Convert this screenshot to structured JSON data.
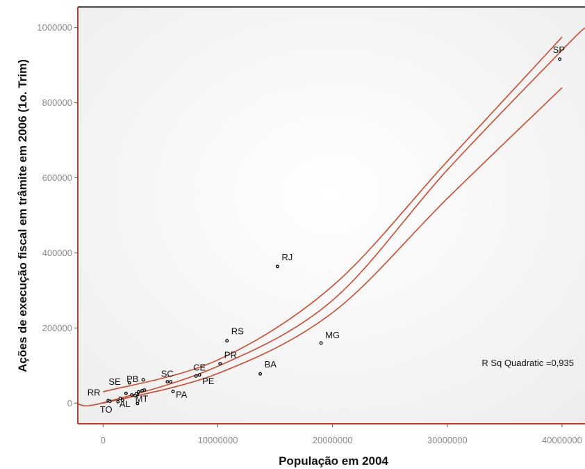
{
  "chart_data": {
    "type": "scatter",
    "title": "",
    "xlabel": "População em 2004",
    "ylabel": "Ações de execução fiscal em trâmite em 2006 (1o. Trim)",
    "xlim": [
      -2200000,
      42000000
    ],
    "ylim": [
      -55000,
      1055000
    ],
    "x_ticks": [
      0,
      10000000,
      20000000,
      30000000,
      40000000
    ],
    "y_ticks": [
      0,
      200000,
      400000,
      600000,
      800000,
      1000000
    ],
    "x_tick_labels": [
      "0",
      "10000000",
      "20000000",
      "30000000",
      "40000000"
    ],
    "y_tick_labels": [
      "0",
      "200000",
      "400000",
      "600000",
      "800000",
      "1000000"
    ],
    "grid": false,
    "annotation": "R Sq Quadratic =0,935",
    "points": [
      {
        "label": "SP",
        "x": 39800000,
        "y": 916000
      },
      {
        "label": "RJ",
        "x": 15200000,
        "y": 364000
      },
      {
        "label": "MG",
        "x": 19000000,
        "y": 160000
      },
      {
        "label": "RS",
        "x": 10800000,
        "y": 166000
      },
      {
        "label": "PR",
        "x": 10200000,
        "y": 105000
      },
      {
        "label": "BA",
        "x": 13700000,
        "y": 78000
      },
      {
        "label": "CE",
        "x": 8100000,
        "y": 72000
      },
      {
        "label": "PE",
        "x": 8400000,
        "y": 75000
      },
      {
        "label": "SC",
        "x": 5900000,
        "y": 57000
      },
      {
        "label": "PA",
        "x": 6100000,
        "y": 31000
      },
      {
        "label": "PB",
        "x": 3500000,
        "y": 62000
      },
      {
        "label": "SE",
        "x": 2300000,
        "y": 54000
      },
      {
        "label": "RR",
        "x": 450000,
        "y": 7000
      },
      {
        "label": "TO",
        "x": 1300000,
        "y": 4000
      },
      {
        "label": "AL",
        "x": 3000000,
        "y": 23000
      },
      {
        "label": "MT",
        "x": 2800000,
        "y": 20000
      },
      {
        "label": "",
        "x": 5600000,
        "y": 57000
      },
      {
        "label": "",
        "x": 3400000,
        "y": 33000
      },
      {
        "label": "",
        "x": 3600000,
        "y": 35000
      },
      {
        "label": "",
        "x": 3100000,
        "y": 30000
      },
      {
        "label": "",
        "x": 2900000,
        "y": 25000
      },
      {
        "label": "",
        "x": 2500000,
        "y": 22000
      },
      {
        "label": "",
        "x": 2000000,
        "y": 26000
      },
      {
        "label": "",
        "x": 1700000,
        "y": 8000
      },
      {
        "label": "",
        "x": 1500000,
        "y": 13000
      },
      {
        "label": "",
        "x": 600000,
        "y": 5000
      },
      {
        "label": "",
        "x": 3000000,
        "y": -1000
      }
    ],
    "fit_curves": [
      {
        "kind": "quadratic_fit",
        "x": [
          -2200000,
          0,
          10000000,
          20000000,
          30000000,
          40000000,
          42000000
        ],
        "y": [
          -2500,
          1000,
          98000,
          274000,
          621000,
          940000,
          1000000
        ]
      },
      {
        "kind": "upper_band",
        "x": [
          0,
          10000000,
          20000000,
          30000000,
          40000000
        ],
        "y": [
          30000,
          115000,
          312000,
          644000,
          975000
        ]
      },
      {
        "kind": "lower_band",
        "x": [
          0,
          10000000,
          20000000,
          30000000,
          40000000
        ],
        "y": [
          0,
          79000,
          241000,
          545000,
          840000
        ]
      }
    ],
    "colors": {
      "fit_line": "#cd4a2e",
      "frame": "#c0392b",
      "point": "#000000"
    }
  }
}
